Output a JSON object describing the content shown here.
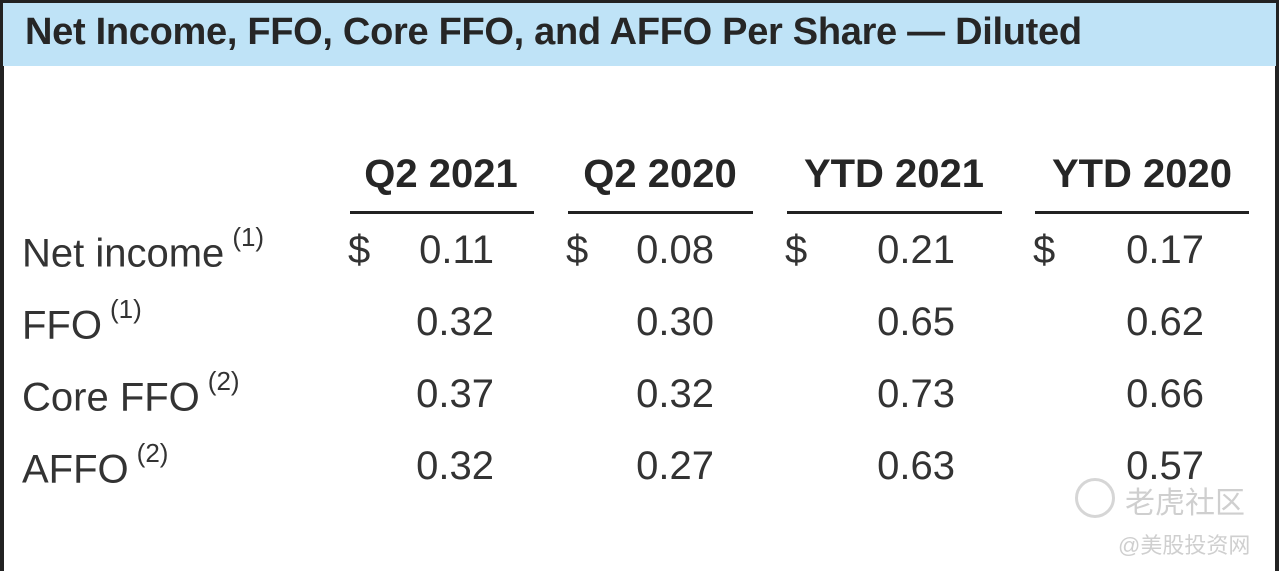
{
  "title": "Net Income, FFO, Core FFO, and AFFO Per Share — Diluted",
  "columns": [
    "Q2 2021",
    "Q2 2020",
    "YTD 2021",
    "YTD 2020"
  ],
  "currency_symbol": "$",
  "rows": [
    {
      "label": "Net income",
      "note": "(1)",
      "values": [
        "0.11",
        "0.08",
        "0.21",
        "0.17"
      ]
    },
    {
      "label": "FFO",
      "note": "(1)",
      "values": [
        "0.32",
        "0.30",
        "0.65",
        "0.62"
      ]
    },
    {
      "label": "Core FFO",
      "note": "(2)",
      "values": [
        "0.37",
        "0.32",
        "0.73",
        "0.66"
      ]
    },
    {
      "label": "AFFO",
      "note": "(2)",
      "values": [
        "0.32",
        "0.27",
        "0.63",
        "0.57"
      ]
    }
  ],
  "watermark": {
    "brand": "老虎社区",
    "handle": "@美股投资网"
  },
  "colors": {
    "header_bg": "#bfe3f7",
    "border": "#222222"
  }
}
